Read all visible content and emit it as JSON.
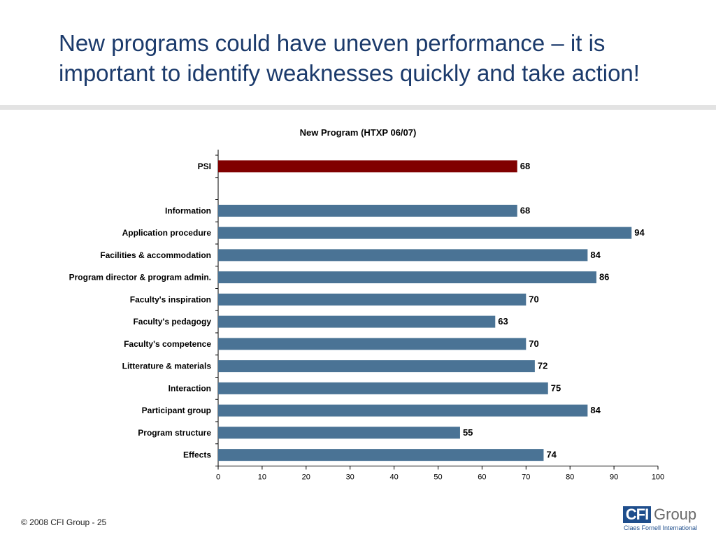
{
  "slide": {
    "title": "New programs could have uneven performance – it is important to identify weaknesses quickly and take action!",
    "footer": "© 2008 CFI Group - 25",
    "logo": {
      "box_text": "CFI",
      "word": "Group",
      "subtitle": "Claes Fornell International"
    }
  },
  "chart_data": {
    "type": "bar",
    "orientation": "horizontal",
    "title": "New Program (HTXP 06/07)",
    "xlim": [
      0,
      100
    ],
    "x_ticks": [
      0,
      10,
      20,
      30,
      40,
      50,
      60,
      70,
      80,
      90,
      100
    ],
    "grid": false,
    "legend": "none",
    "categories": [
      "PSI",
      "",
      "Information",
      "Application procedure",
      "Facilities & accommodation",
      "Program director & program admin.",
      "Faculty's inspiration",
      "Faculty's pedagogy",
      "Faculty's competence",
      "Litterature & materials",
      "Interaction",
      "Participant group",
      "Program structure",
      "Effects"
    ],
    "values": [
      68,
      null,
      68,
      94,
      84,
      86,
      70,
      63,
      70,
      72,
      75,
      84,
      55,
      74
    ],
    "colors": {
      "highlight": "#800000",
      "default": "#4a7395"
    },
    "highlight_index": 0
  }
}
